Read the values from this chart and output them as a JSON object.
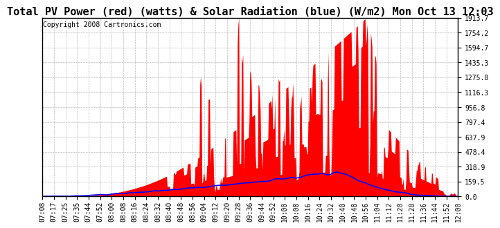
{
  "title": "Total PV Power (red) (watts) & Solar Radiation (blue) (W/m2) Mon Oct 13 12:03",
  "copyright": "Copyright 2008 Cartronics.com",
  "bg_color": "#ffffff",
  "plot_bg_color": "#ffffff",
  "grid_color": "#bbbbbb",
  "y_ticks": [
    0.0,
    159.5,
    318.9,
    478.4,
    637.9,
    797.4,
    956.8,
    1116.3,
    1275.8,
    1435.3,
    1594.7,
    1754.2,
    1913.7
  ],
  "x_labels": [
    "07:08",
    "07:17",
    "07:25",
    "07:35",
    "07:44",
    "07:52",
    "08:00",
    "08:08",
    "08:16",
    "08:24",
    "08:32",
    "08:40",
    "08:48",
    "08:56",
    "09:04",
    "09:12",
    "09:20",
    "09:28",
    "09:36",
    "09:44",
    "09:52",
    "10:00",
    "10:08",
    "10:16",
    "10:24",
    "10:32",
    "10:40",
    "10:48",
    "10:56",
    "11:04",
    "11:12",
    "11:20",
    "11:28",
    "11:36",
    "11:44",
    "11:52",
    "12:00"
  ],
  "pv_color": "#ff0000",
  "solar_color": "#0000ff",
  "title_fontsize": 11,
  "tick_fontsize": 7,
  "copyright_fontsize": 7
}
